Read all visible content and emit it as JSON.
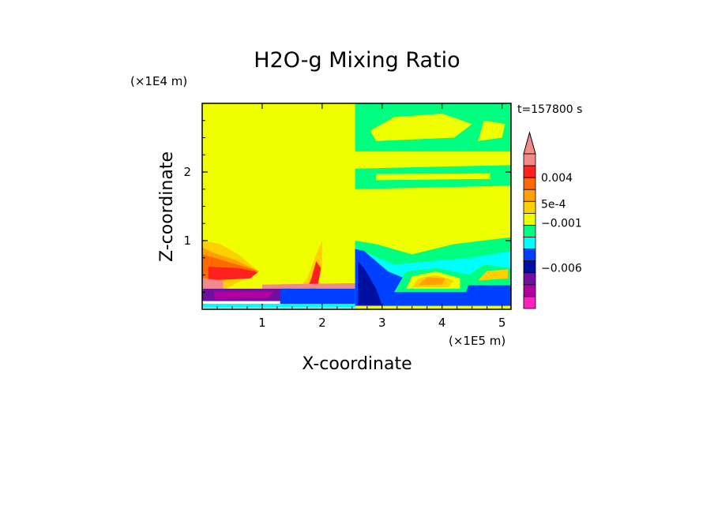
{
  "chart_data": {
    "type": "heatmap",
    "title": "H2O-g Mixing Ratio",
    "xlabel": "X-coordinate",
    "ylabel": "Z-coordinate",
    "x_unit": "(×1E5 m)",
    "y_unit": "(×1E4 m)",
    "time_label": "t=157800 s",
    "xlim": [
      0,
      5.15
    ],
    "ylim": [
      0,
      3.0
    ],
    "x_ticks": [
      1,
      2,
      3,
      4,
      5
    ],
    "y_ticks": [
      1,
      2
    ],
    "x_tick_labels": [
      "1",
      "2",
      "3",
      "4",
      "5"
    ],
    "y_tick_labels": [
      "1",
      "2"
    ],
    "colorbar": {
      "labels": [
        {
          "text": "0.004",
          "value": 0.004
        },
        {
          "text": "5e-4",
          "value": 0.0005
        },
        {
          "text": "−0.001",
          "value": -0.001
        },
        {
          "text": "−0.006",
          "value": -0.006
        }
      ],
      "colors_top_to_bottom": [
        "#f28a8a",
        "#ff2020",
        "#ff6a00",
        "#ffa000",
        "#ffd000",
        "#f0ff00",
        "#00ff80",
        "#00ffff",
        "#0040ff",
        "#0010a0",
        "#7010a0",
        "#b000a0",
        "#ff20c0"
      ],
      "extend_top": true
    },
    "regions": [
      {
        "fill": "#f0ff00",
        "points": [
          [
            0,
            0.3
          ],
          [
            2.55,
            0.3
          ],
          [
            2.55,
            3.0
          ],
          [
            0,
            3.0
          ]
        ]
      },
      {
        "fill": "#ffd000",
        "points": [
          [
            0,
            0.3
          ],
          [
            0.4,
            0.3
          ],
          [
            0.95,
            0.55
          ],
          [
            0.6,
            0.8
          ],
          [
            0.3,
            0.95
          ],
          [
            0,
            1.0
          ]
        ]
      },
      {
        "fill": "#ffa000",
        "points": [
          [
            0,
            0.4
          ],
          [
            0.5,
            0.45
          ],
          [
            0.95,
            0.55
          ],
          [
            0.55,
            0.72
          ],
          [
            0.2,
            0.82
          ],
          [
            0,
            0.9
          ]
        ]
      },
      {
        "fill": "#ff6a00",
        "points": [
          [
            0,
            0.45
          ],
          [
            0.6,
            0.48
          ],
          [
            0.92,
            0.56
          ],
          [
            0.55,
            0.66
          ],
          [
            0.2,
            0.75
          ],
          [
            0,
            0.8
          ]
        ]
      },
      {
        "fill": "#ff2020",
        "points": [
          [
            0.1,
            0.42
          ],
          [
            0.8,
            0.45
          ],
          [
            0.93,
            0.54
          ],
          [
            0.6,
            0.6
          ],
          [
            0.1,
            0.62
          ]
        ]
      },
      {
        "fill": "#f28a8a",
        "points": [
          [
            0,
            0.3
          ],
          [
            0.35,
            0.3
          ],
          [
            0.35,
            0.42
          ],
          [
            0,
            0.45
          ]
        ]
      },
      {
        "fill": "#ffd000",
        "points": [
          [
            1.6,
            0.3
          ],
          [
            1.9,
            0.3
          ],
          [
            2.0,
            0.6
          ],
          [
            2.0,
            1.0
          ],
          [
            1.88,
            0.75
          ],
          [
            1.75,
            0.45
          ]
        ]
      },
      {
        "fill": "#ff2020",
        "points": [
          [
            1.75,
            0.3
          ],
          [
            1.92,
            0.3
          ],
          [
            1.98,
            0.6
          ],
          [
            1.9,
            0.7
          ],
          [
            1.82,
            0.45
          ]
        ]
      },
      {
        "fill": "#f28a8a",
        "points": [
          [
            1.0,
            0.3
          ],
          [
            2.55,
            0.3
          ],
          [
            2.55,
            0.38
          ],
          [
            1.0,
            0.36
          ]
        ]
      },
      {
        "fill": "#7010a0",
        "points": [
          [
            0,
            0.12
          ],
          [
            1.4,
            0.12
          ],
          [
            1.5,
            0.3
          ],
          [
            0,
            0.3
          ]
        ]
      },
      {
        "fill": "#b000a0",
        "points": [
          [
            0.2,
            0.15
          ],
          [
            1.1,
            0.16
          ],
          [
            1.2,
            0.26
          ],
          [
            0.2,
            0.26
          ]
        ]
      },
      {
        "fill": "#0040ff",
        "points": [
          [
            1.3,
            0.05
          ],
          [
            2.55,
            0.05
          ],
          [
            2.55,
            0.3
          ],
          [
            1.3,
            0.3
          ]
        ]
      },
      {
        "fill": "#00ffff",
        "points": [
          [
            0,
            0.02
          ],
          [
            5.15,
            0.02
          ],
          [
            5.15,
            0.08
          ],
          [
            0,
            0.08
          ]
        ]
      },
      {
        "fill": "#f0ff00",
        "points": [
          [
            2.55,
            0
          ],
          [
            5.15,
            0
          ],
          [
            5.15,
            3.0
          ],
          [
            2.55,
            3.0
          ]
        ]
      },
      {
        "fill": "#00ff80",
        "points": [
          [
            2.55,
            2.3
          ],
          [
            5.15,
            2.3
          ],
          [
            5.15,
            3.0
          ],
          [
            2.55,
            3.0
          ]
        ]
      },
      {
        "fill": "#f0ff00",
        "points": [
          [
            2.9,
            2.45
          ],
          [
            4.2,
            2.5
          ],
          [
            4.5,
            2.7
          ],
          [
            4.0,
            2.85
          ],
          [
            3.2,
            2.8
          ],
          [
            2.8,
            2.6
          ]
        ]
      },
      {
        "fill": "#f0ff00",
        "points": [
          [
            4.6,
            2.45
          ],
          [
            5.0,
            2.5
          ],
          [
            5.05,
            2.7
          ],
          [
            4.7,
            2.75
          ]
        ]
      },
      {
        "fill": "#00ff80",
        "points": [
          [
            2.55,
            1.75
          ],
          [
            5.15,
            1.8
          ],
          [
            5.15,
            2.1
          ],
          [
            2.55,
            2.05
          ]
        ]
      },
      {
        "fill": "#f0ff00",
        "points": [
          [
            2.9,
            1.88
          ],
          [
            4.8,
            1.9
          ],
          [
            4.8,
            1.98
          ],
          [
            2.9,
            1.97
          ]
        ]
      },
      {
        "fill": "#00ff80",
        "points": [
          [
            2.55,
            0.45
          ],
          [
            5.15,
            0.45
          ],
          [
            5.15,
            1.05
          ],
          [
            4.2,
            0.95
          ],
          [
            3.5,
            0.8
          ],
          [
            2.9,
            0.95
          ],
          [
            2.55,
            1.0
          ]
        ]
      },
      {
        "fill": "#00ffff",
        "points": [
          [
            2.55,
            0.3
          ],
          [
            5.15,
            0.3
          ],
          [
            5.15,
            0.85
          ],
          [
            4.5,
            0.75
          ],
          [
            3.8,
            0.7
          ],
          [
            3.2,
            0.65
          ],
          [
            2.55,
            0.9
          ]
        ]
      },
      {
        "fill": "#0040ff",
        "points": [
          [
            2.55,
            0.05
          ],
          [
            5.15,
            0.05
          ],
          [
            5.15,
            0.55
          ],
          [
            4.6,
            0.4
          ],
          [
            3.8,
            0.3
          ],
          [
            3.1,
            0.55
          ],
          [
            2.7,
            0.85
          ],
          [
            2.55,
            0.88
          ]
        ]
      },
      {
        "fill": "#0010a0",
        "points": [
          [
            2.6,
            0.06
          ],
          [
            3.0,
            0.06
          ],
          [
            2.9,
            0.3
          ],
          [
            2.7,
            0.6
          ],
          [
            2.6,
            0.7
          ]
        ]
      },
      {
        "fill": "#00ff80",
        "points": [
          [
            3.2,
            0.25
          ],
          [
            4.4,
            0.25
          ],
          [
            4.5,
            0.5
          ],
          [
            3.9,
            0.6
          ],
          [
            3.4,
            0.55
          ]
        ]
      },
      {
        "fill": "#f0ff00",
        "points": [
          [
            3.4,
            0.3
          ],
          [
            4.3,
            0.3
          ],
          [
            4.3,
            0.45
          ],
          [
            3.9,
            0.55
          ],
          [
            3.5,
            0.48
          ]
        ]
      },
      {
        "fill": "#ffd000",
        "points": [
          [
            3.5,
            0.32
          ],
          [
            4.1,
            0.32
          ],
          [
            4.2,
            0.42
          ],
          [
            3.9,
            0.5
          ],
          [
            3.6,
            0.45
          ]
        ]
      },
      {
        "fill": "#ffa000",
        "points": [
          [
            3.6,
            0.35
          ],
          [
            4.0,
            0.36
          ],
          [
            4.05,
            0.45
          ],
          [
            3.75,
            0.47
          ]
        ]
      },
      {
        "fill": "#00ff80",
        "points": [
          [
            4.4,
            0.35
          ],
          [
            5.15,
            0.35
          ],
          [
            5.15,
            0.6
          ],
          [
            4.7,
            0.65
          ],
          [
            4.45,
            0.5
          ]
        ]
      },
      {
        "fill": "#ffd000",
        "points": [
          [
            4.6,
            0.42
          ],
          [
            5.1,
            0.45
          ],
          [
            5.1,
            0.58
          ],
          [
            4.75,
            0.56
          ]
        ]
      }
    ]
  }
}
